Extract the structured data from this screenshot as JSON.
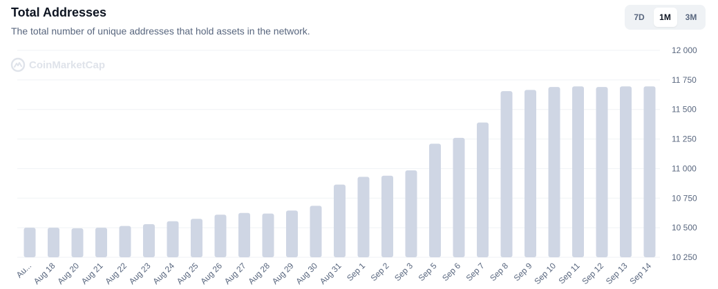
{
  "header": {
    "title": "Total Addresses",
    "subtitle": "The total number of unique addresses that hold assets in the network."
  },
  "range_selector": {
    "options": [
      "7D",
      "1M",
      "3M"
    ],
    "selected": "1M"
  },
  "watermark": {
    "text": "CoinMarketCap",
    "icon": "coinmarketcap-logo-icon"
  },
  "colors": {
    "bar": "#cfd6e4",
    "grid": "#eff2f5",
    "accent_text": "#0d1421",
    "muted_text": "#58667e"
  },
  "chart_data": {
    "type": "bar",
    "title": "Total Addresses",
    "categories": [
      "Au...",
      "Aug 18",
      "Aug 20",
      "Aug 21",
      "Aug 22",
      "Aug 23",
      "Aug 24",
      "Aug 25",
      "Aug 26",
      "Aug 27",
      "Aug 28",
      "Aug 29",
      "Aug 30",
      "Aug 31",
      "Sep 1",
      "Sep 2",
      "Sep 3",
      "Sep 5",
      "Sep 6",
      "Sep 7",
      "Sep 8",
      "Sep 9",
      "Sep 10",
      "Sep 11",
      "Sep 12",
      "Sep 13",
      "Sep 14"
    ],
    "values": [
      10500,
      10500,
      10495,
      10500,
      10515,
      10530,
      10555,
      10575,
      10610,
      10625,
      10620,
      10645,
      10685,
      10865,
      10930,
      10940,
      10985,
      11210,
      11260,
      11390,
      11655,
      11665,
      11690,
      11695,
      11690,
      11695,
      11695
    ],
    "yticks": [
      "12 000",
      "11 750",
      "11 500",
      "11 250",
      "11 000",
      "10 750",
      "10 500",
      "10 250"
    ],
    "ylim": [
      10250,
      12000
    ],
    "grid": true,
    "xlabel": "",
    "ylabel": ""
  }
}
